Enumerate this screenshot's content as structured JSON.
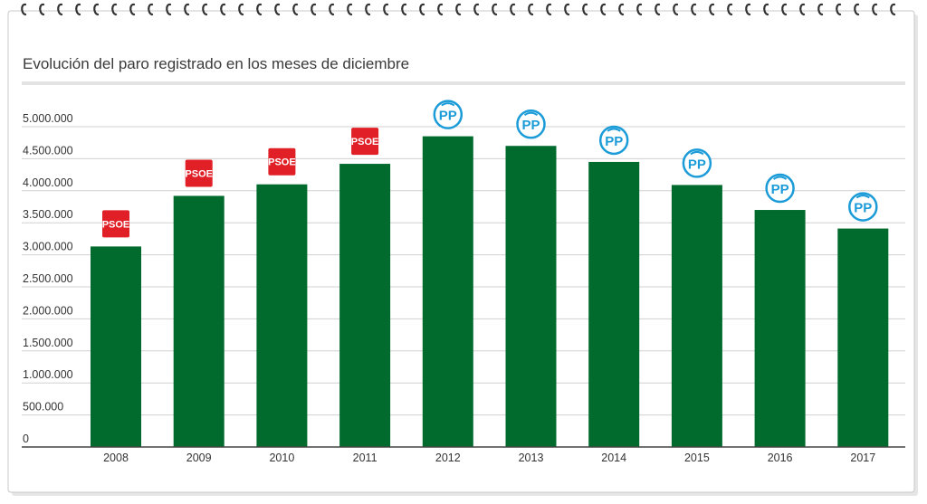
{
  "chart_data": {
    "type": "bar",
    "title": "Evolución del paro registrado en los meses de diciembre",
    "xlabel": "",
    "ylabel": "",
    "categories": [
      "2008",
      "2009",
      "2010",
      "2011",
      "2012",
      "2013",
      "2014",
      "2015",
      "2016",
      "2017"
    ],
    "values": [
      3130000,
      3920000,
      4100000,
      4420000,
      4850000,
      4700000,
      4450000,
      4090000,
      3700000,
      3410000
    ],
    "party": [
      "PSOE",
      "PSOE",
      "PSOE",
      "PSOE",
      "PP",
      "PP",
      "PP",
      "PP",
      "PP",
      "PP"
    ],
    "party_labels": {
      "PSOE": "PSOE",
      "PP": "PP"
    },
    "ylim": [
      0,
      5000000
    ],
    "yticks": [
      0,
      500000,
      1000000,
      1500000,
      2000000,
      2500000,
      3000000,
      3500000,
      4000000,
      4500000,
      5000000
    ],
    "ytick_labels": [
      "0",
      "500.000",
      "1.000.000",
      "1.500.000",
      "2.000.000",
      "2.500.000",
      "3.000.000",
      "3.500.000",
      "4.000.000",
      "4.500.000",
      "5.000.000"
    ],
    "grid": true,
    "legend": "none"
  },
  "colors": {
    "bar": "#006b2d",
    "grid": "#d0d0d0",
    "axis": "#444444",
    "psoe": "#e01f26",
    "pp": "#1b9bd7",
    "frame_border": "#c8c8c8",
    "title_rule": "#e3e3e3",
    "spiral": "#333333"
  }
}
